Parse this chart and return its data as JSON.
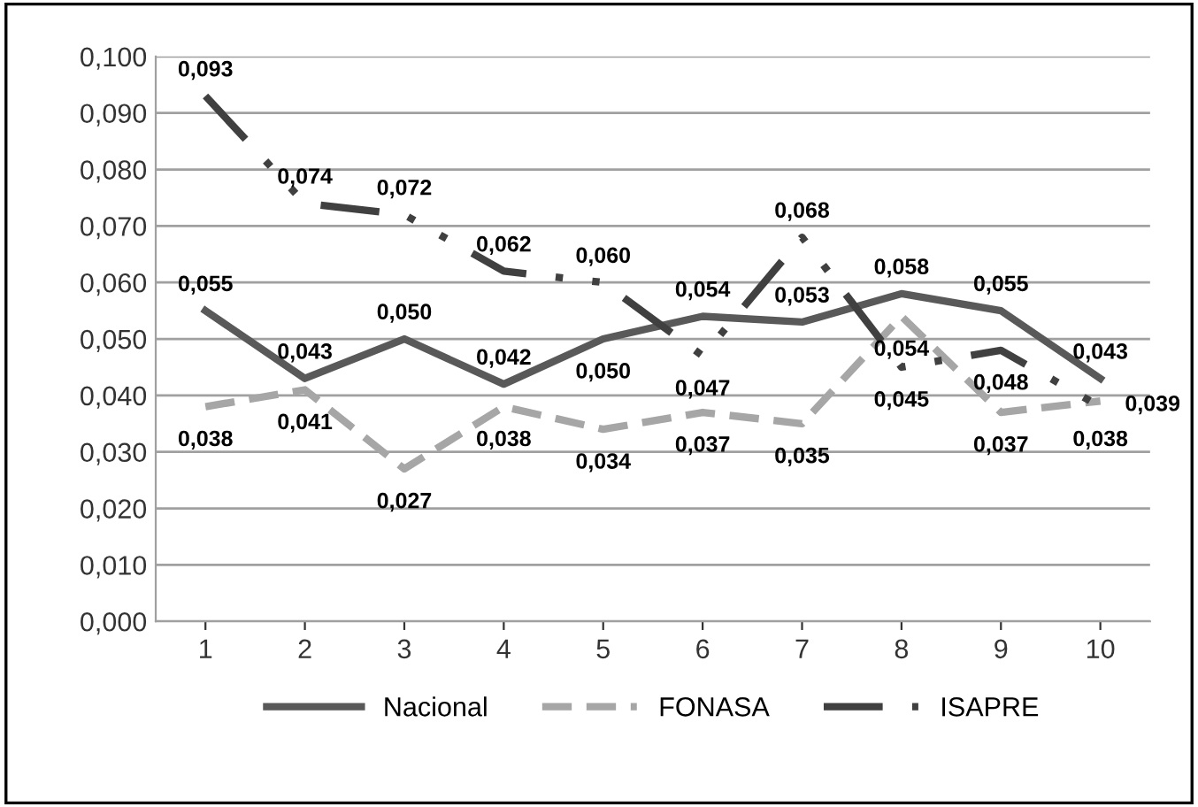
{
  "chart_data": {
    "type": "line",
    "categories": [
      "1",
      "2",
      "3",
      "4",
      "5",
      "6",
      "7",
      "8",
      "9",
      "10"
    ],
    "series": [
      {
        "name": "Nacional",
        "color": "#595959",
        "line_style": "solid",
        "values": [
          0.055,
          0.043,
          0.05,
          0.042,
          0.05,
          0.054,
          0.053,
          0.058,
          0.055,
          0.043
        ],
        "value_labels": [
          "0,055",
          "0,043",
          "0,050",
          "0,042",
          "0,050",
          "0,054",
          "0,053",
          "0,058",
          "0,055",
          "0,043"
        ]
      },
      {
        "name": "FONASA",
        "color": "#a6a6a6",
        "line_style": "dashed",
        "values": [
          0.038,
          0.041,
          0.027,
          0.038,
          0.034,
          0.037,
          0.035,
          0.054,
          0.037,
          0.039
        ],
        "value_labels": [
          "0,038",
          "0,041",
          "0,027",
          "0,038",
          "0,034",
          "0,037",
          "0,035",
          "0,054",
          "0,037",
          "0,039"
        ]
      },
      {
        "name": "ISAPRE",
        "color": "#404040",
        "line_style": "dashdot",
        "values": [
          0.093,
          0.074,
          0.072,
          0.062,
          0.06,
          0.047,
          0.068,
          0.045,
          0.048,
          0.038
        ],
        "value_labels": [
          "0,093",
          "0,074",
          "0,072",
          "0,062",
          "0,060",
          "0,047",
          "0,068",
          "0,045",
          "0,048",
          "0,038"
        ]
      }
    ],
    "ylim": [
      0,
      0.1
    ],
    "yticks": [
      {
        "value": 0,
        "label": "0,000"
      },
      {
        "value": 0.01,
        "label": "0,010"
      },
      {
        "value": 0.02,
        "label": "0,020"
      },
      {
        "value": 0.03,
        "label": "0,030"
      },
      {
        "value": 0.04,
        "label": "0,040"
      },
      {
        "value": 0.05,
        "label": "0,050"
      },
      {
        "value": 0.06,
        "label": "0,060"
      },
      {
        "value": 0.07,
        "label": "0,070"
      },
      {
        "value": 0.08,
        "label": "0,080"
      },
      {
        "value": 0.09,
        "label": "0,090"
      },
      {
        "value": 0.1,
        "label": "0,100"
      }
    ],
    "grid": "y",
    "legend": "bottom",
    "marker": "none"
  }
}
